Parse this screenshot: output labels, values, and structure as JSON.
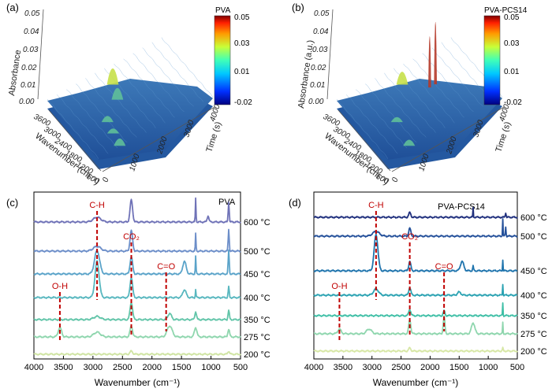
{
  "figure": {
    "background": "#ffffff",
    "accent_red": "#c00000"
  },
  "chart_data": [
    {
      "panel": "(a)",
      "type": "surface3d",
      "title": "PVA",
      "zlabel": "Absorbance",
      "xlabel": "Wavenumber (cm⁻¹)",
      "ylabel": "Time (s)",
      "z_ticks": [
        "0.00",
        "0.01",
        "0.02",
        "0.03",
        "0.04",
        "0.05"
      ],
      "x_ticks": [
        "3600",
        "3000",
        "2400",
        "1800",
        "1200",
        "600"
      ],
      "y_ticks": [
        "0",
        "1000",
        "2000",
        "3000",
        "4000"
      ],
      "colorbar": {
        "title": "PVA",
        "ticks": [
          "0.05",
          "0.03",
          "0.01",
          "-0.02"
        ],
        "range": [
          -0.02,
          0.05
        ]
      },
      "surface_color": "#2a5fa8",
      "peaks": [
        {
          "wavenumber": 2950,
          "time": 1900,
          "abs": 0.014
        },
        {
          "wavenumber": 2340,
          "time": 1700,
          "abs": 0.01
        },
        {
          "wavenumber": 1750,
          "time": 1000,
          "abs": 0.005
        },
        {
          "wavenumber": 1250,
          "time": 900,
          "abs": 0.004
        },
        {
          "wavenumber": 700,
          "time": 800,
          "abs": 0.006
        }
      ]
    },
    {
      "panel": "(b)",
      "type": "surface3d",
      "title": "PVA-PCS14",
      "zlabel": "Absorbance (a.u.)",
      "xlabel": "Wavenumber (cm⁻¹)",
      "ylabel": "Time (s)",
      "z_ticks": [
        "0.00",
        "0.01",
        "0.02",
        "0.03",
        "0.04",
        "0.05"
      ],
      "x_ticks": [
        "3600",
        "3000",
        "2400",
        "1800",
        "1200",
        "600"
      ],
      "y_ticks": [
        "0",
        "1000",
        "2000",
        "3000",
        "4000"
      ],
      "colorbar": {
        "title": "PVA-PCS14",
        "ticks": [
          "0.05",
          "0.03",
          "0.01",
          "-0.02"
        ],
        "range": [
          -0.02,
          0.05
        ]
      },
      "surface_color": "#2a5fa8",
      "peaks": [
        {
          "wavenumber": 2950,
          "time": 1900,
          "abs": 0.011
        },
        {
          "wavenumber": 2340,
          "time": 2500,
          "abs": 0.045
        },
        {
          "wavenumber": 2340,
          "time": 2700,
          "abs": 0.055
        },
        {
          "wavenumber": 1750,
          "time": 1000,
          "abs": 0.004
        },
        {
          "wavenumber": 700,
          "time": 800,
          "abs": 0.005
        }
      ]
    },
    {
      "panel": "(c)",
      "type": "line",
      "title": "PVA",
      "xlabel": "Wavenumber (cm⁻¹)",
      "x_ticks": [
        4000,
        3500,
        3000,
        2500,
        2000,
        1500,
        1000,
        500
      ],
      "xlim": [
        4000,
        500
      ],
      "series": [
        {
          "name": "600 °C",
          "color": "#6f72b7"
        },
        {
          "name": "500 °C",
          "color": "#6c8ec9"
        },
        {
          "name": "450 °C",
          "color": "#5aa3c9"
        },
        {
          "name": "400 °C",
          "color": "#58b7bf"
        },
        {
          "name": "350 °C",
          "color": "#62c5a9"
        },
        {
          "name": "275 °C",
          "color": "#8fd6ae"
        },
        {
          "name": "200 °C",
          "color": "#cfe4a2"
        }
      ],
      "annotations": [
        {
          "text": "C-H",
          "wavenumber": 2930
        },
        {
          "text": "CO₂",
          "wavenumber": 2350
        },
        {
          "text": "C=O",
          "wavenumber": 1760
        },
        {
          "text": "O-H",
          "wavenumber": 3560
        }
      ]
    },
    {
      "panel": "(d)",
      "type": "line",
      "title": "PVA-PCS14",
      "xlabel": "Wavenumber (cm⁻¹)",
      "x_ticks": [
        4000,
        3500,
        3000,
        2500,
        2000,
        1500,
        1000,
        500
      ],
      "xlim": [
        4000,
        500
      ],
      "series": [
        {
          "name": "600 °C",
          "color": "#1f2f7d"
        },
        {
          "name": "500 °C",
          "color": "#24509a"
        },
        {
          "name": "450 °C",
          "color": "#1f74ad"
        },
        {
          "name": "400 °C",
          "color": "#2aa2b2"
        },
        {
          "name": "350 °C",
          "color": "#3fbfa6"
        },
        {
          "name": "275 °C",
          "color": "#8fd6ae"
        },
        {
          "name": "200 °C",
          "color": "#d7e7a5"
        }
      ],
      "annotations": [
        {
          "text": "C-H",
          "wavenumber": 2930
        },
        {
          "text": "CO₂",
          "wavenumber": 2350
        },
        {
          "text": "C=O",
          "wavenumber": 1760
        },
        {
          "text": "O-H",
          "wavenumber": 3560
        }
      ]
    }
  ]
}
